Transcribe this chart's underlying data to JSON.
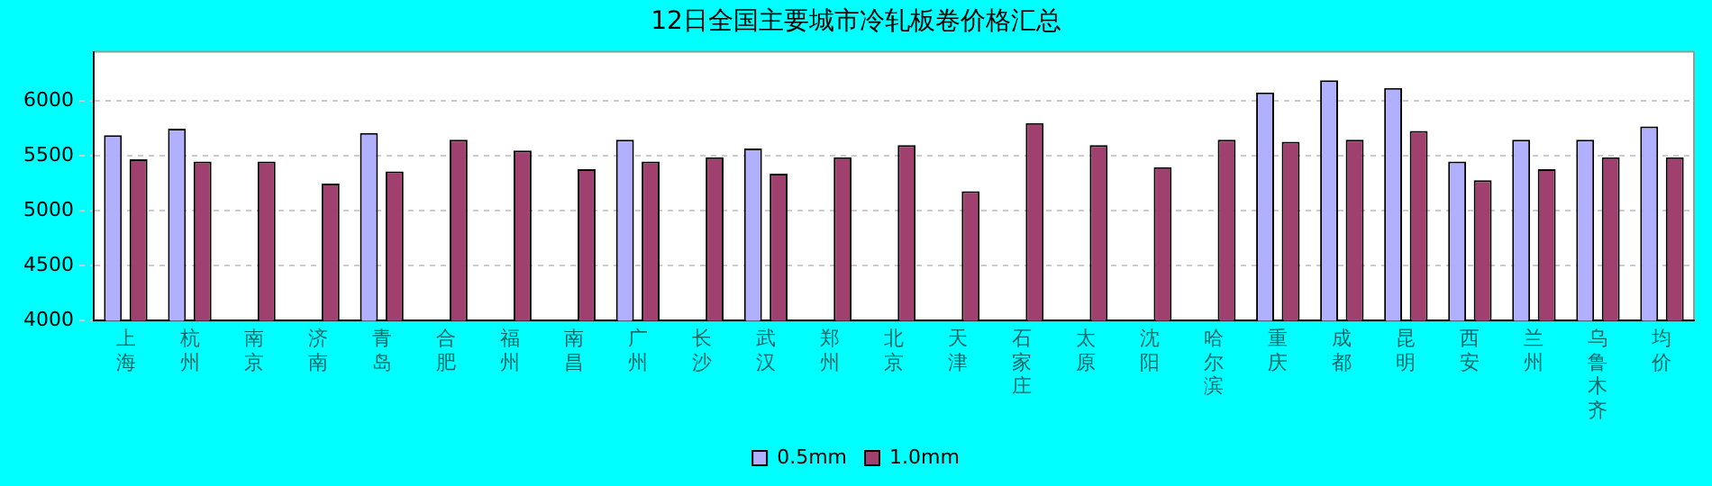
{
  "chart_data": {
    "type": "bar",
    "title": "12日全国主要城市冷轧板卷价格汇总",
    "categories": [
      "上海",
      "杭州",
      "南京",
      "济南",
      "青岛",
      "合肥",
      "福州",
      "南昌",
      "广州",
      "长沙",
      "武汉",
      "郑州",
      "北京",
      "天津",
      "石家庄",
      "太原",
      "沈阳",
      "哈尔滨",
      "重庆",
      "成都",
      "昆明",
      "西安",
      "兰州",
      "乌鲁木齐",
      "均价"
    ],
    "series": [
      {
        "name": "0.5mm",
        "color": "#b0b0ff",
        "values": [
          5690,
          5750,
          null,
          null,
          5710,
          null,
          null,
          null,
          5650,
          null,
          5570,
          null,
          null,
          null,
          null,
          null,
          null,
          null,
          6080,
          6190,
          6120,
          5450,
          5650,
          5650,
          5770
        ]
      },
      {
        "name": "1.0mm",
        "color": "#a0406e",
        "values": [
          5470,
          5450,
          5450,
          5250,
          5360,
          5650,
          5550,
          5380,
          5450,
          5490,
          5340,
          5490,
          5600,
          5180,
          5800,
          5600,
          5400,
          5650,
          5630,
          5650,
          5730,
          5280,
          5380,
          5490,
          5490
        ]
      }
    ],
    "ylim": [
      4000,
      6450
    ],
    "yticks": [
      4000,
      4500,
      5000,
      5500,
      6000
    ],
    "grid": "y",
    "legend": "bottom"
  }
}
